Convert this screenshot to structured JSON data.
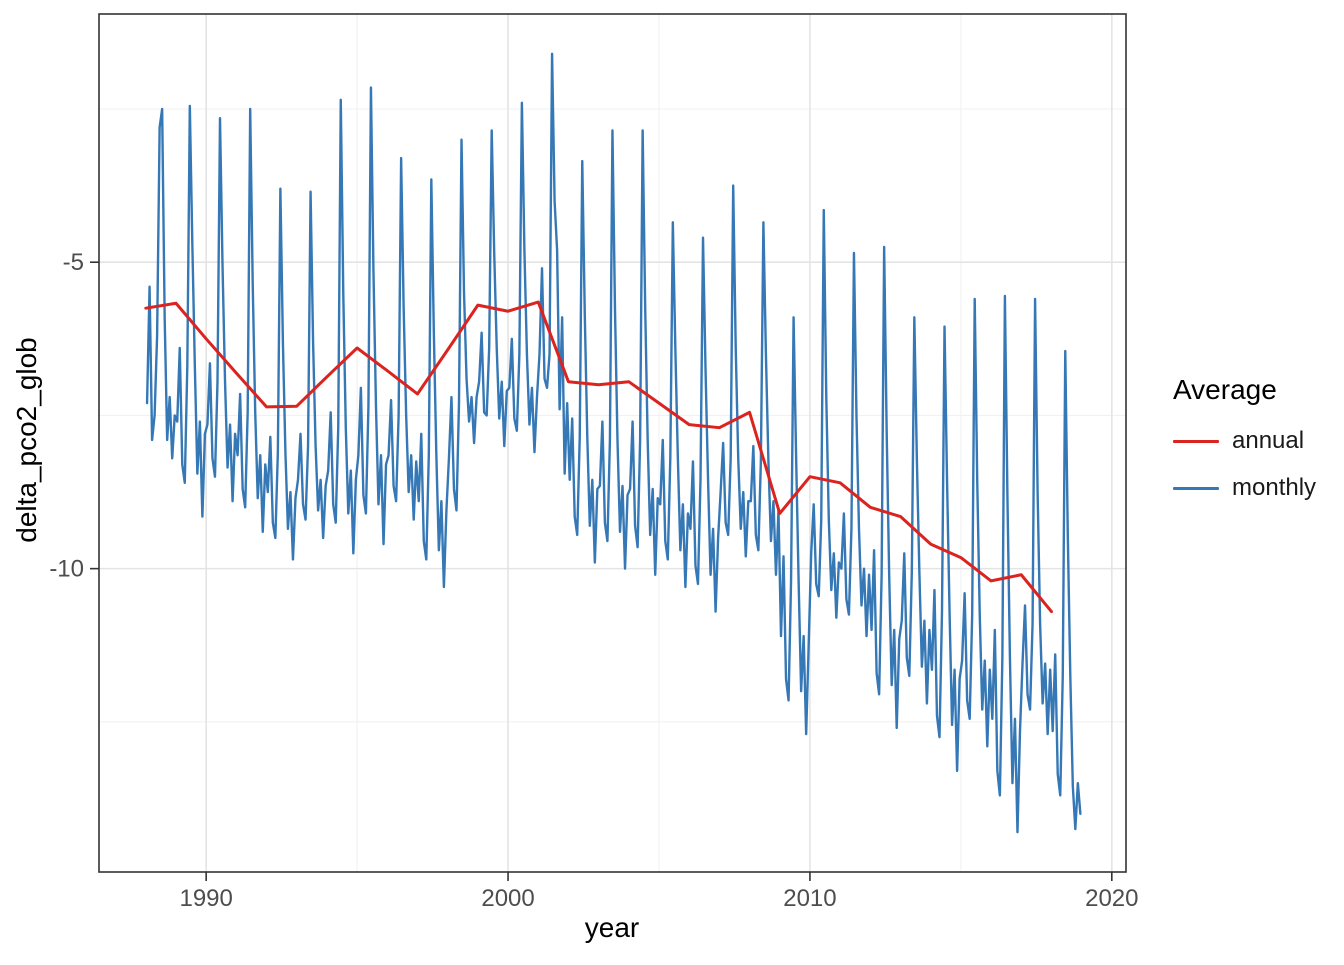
{
  "chart_data": {
    "type": "line",
    "title": "",
    "xlabel": "year",
    "ylabel": "delta_pco2_glob",
    "xlim": [
      1986.45,
      2020.47
    ],
    "ylim": [
      -14.95,
      -0.95
    ],
    "x_ticks": [
      1990,
      2000,
      2010,
      2020
    ],
    "x_minor_ticks": [
      1995,
      2005,
      2015
    ],
    "y_ticks": [
      -5,
      -10
    ],
    "y_minor_ticks": [
      -2.5,
      -7.5,
      -12.5
    ],
    "grid": true,
    "panel_border_color": "#333333",
    "grid_major_color": "#e4e4e4",
    "grid_minor_color": "#f1f1f1",
    "tick_color": "#333333",
    "tick_label_color": "#4d4d4d",
    "legend": {
      "title": "Average",
      "position": "right",
      "entries": [
        {
          "label": "annual",
          "color": "#db231f"
        },
        {
          "label": "monthly",
          "color": "#3578b5"
        }
      ]
    },
    "series": [
      {
        "name": "monthly",
        "color": "#3578b5",
        "stroke_width": 2.4,
        "x_start_year": 1988,
        "points_per_year": 12,
        "values": [
          -7.3,
          -5.4,
          -7.9,
          -7.5,
          -6.2,
          -2.8,
          -2.5,
          -5.9,
          -7.9,
          -7.2,
          -8.2,
          -7.5,
          -7.6,
          -6.4,
          -8.3,
          -8.6,
          -6.7,
          -2.45,
          -4.7,
          -6.7,
          -8.45,
          -7.6,
          -9.15,
          -7.8,
          -7.65,
          -6.65,
          -8.2,
          -8.5,
          -6.95,
          -2.65,
          -5.05,
          -6.95,
          -8.35,
          -7.65,
          -8.9,
          -7.8,
          -8.15,
          -7.15,
          -8.7,
          -9.0,
          -7.45,
          -2.5,
          -5.35,
          -7.45,
          -8.85,
          -8.15,
          -9.4,
          -8.3,
          -8.75,
          -7.85,
          -9.25,
          -9.5,
          -8.1,
          -3.8,
          -6.3,
          -8.1,
          -9.35,
          -8.75,
          -9.85,
          -8.85,
          -8.55,
          -7.8,
          -8.95,
          -9.2,
          -8.0,
          -3.85,
          -6.3,
          -8.0,
          -9.05,
          -8.55,
          -9.5,
          -8.65,
          -8.4,
          -7.45,
          -8.95,
          -9.25,
          -7.7,
          -2.35,
          -5.5,
          -7.7,
          -9.1,
          -8.4,
          -9.75,
          -8.55,
          -8.15,
          -7.05,
          -8.8,
          -9.1,
          -7.35,
          -2.15,
          -5.15,
          -7.35,
          -8.95,
          -8.15,
          -9.6,
          -8.3,
          -8.15,
          -7.25,
          -8.65,
          -8.9,
          -7.5,
          -3.3,
          -5.75,
          -7.5,
          -8.75,
          -8.15,
          -9.2,
          -8.25,
          -8.9,
          -7.8,
          -9.55,
          -9.85,
          -8.15,
          -3.65,
          -6.15,
          -8.15,
          -9.7,
          -8.9,
          -10.3,
          -9.05,
          -8.2,
          -7.2,
          -8.7,
          -9.05,
          -7.3,
          -3.0,
          -5.5,
          -6.9,
          -7.6,
          -7.2,
          -7.95,
          -7.2,
          -6.95,
          -6.15,
          -7.45,
          -7.5,
          -6.4,
          -2.85,
          -4.85,
          -6.4,
          -7.55,
          -6.95,
          -8.0,
          -7.1,
          -7.05,
          -6.25,
          -7.55,
          -7.75,
          -6.5,
          -2.4,
          -4.8,
          -6.5,
          -7.65,
          -7.05,
          -8.1,
          -7.2,
          -6.5,
          -5.1,
          -6.9,
          -7.05,
          -6.5,
          -1.6,
          -4.0,
          -4.8,
          -7.4,
          -5.9,
          -8.45,
          -7.3,
          -8.55,
          -7.55,
          -9.15,
          -9.45,
          -7.85,
          -3.35,
          -5.85,
          -7.85,
          -9.3,
          -8.55,
          -9.9,
          -8.7,
          -8.65,
          -7.6,
          -9.25,
          -9.55,
          -7.9,
          -2.85,
          -5.75,
          -7.9,
          -9.4,
          -8.65,
          -10.0,
          -8.8,
          -8.7,
          -7.6,
          -9.3,
          -9.65,
          -7.9,
          -2.85,
          -5.7,
          -7.9,
          -9.45,
          -8.7,
          -10.1,
          -8.85,
          -8.95,
          -7.9,
          -9.55,
          -9.85,
          -8.2,
          -4.35,
          -6.4,
          -8.2,
          -9.7,
          -8.95,
          -10.3,
          -9.1,
          -9.35,
          -8.25,
          -9.95,
          -10.25,
          -8.55,
          -4.6,
          -6.75,
          -8.55,
          -10.1,
          -9.35,
          -10.7,
          -9.5,
          -8.75,
          -7.95,
          -9.25,
          -9.45,
          -8.2,
          -3.75,
          -6.4,
          -8.2,
          -9.35,
          -8.75,
          -9.8,
          -8.9,
          -8.9,
          -8.0,
          -9.45,
          -9.7,
          -8.25,
          -4.35,
          -6.5,
          -8.25,
          -9.55,
          -8.9,
          -10.1,
          -9.05,
          -11.1,
          -9.8,
          -11.8,
          -12.15,
          -10.2,
          -5.9,
          -8.15,
          -10.2,
          -12.0,
          -11.1,
          -12.7,
          -11.25,
          -9.75,
          -8.95,
          -10.25,
          -10.45,
          -9.2,
          -4.15,
          -7.2,
          -9.2,
          -10.35,
          -9.75,
          -10.8,
          -9.9,
          -10.0,
          -9.1,
          -10.5,
          -10.75,
          -9.35,
          -4.85,
          -7.5,
          -9.35,
          -10.6,
          -10.0,
          -11.1,
          -10.1,
          -11.0,
          -9.7,
          -11.7,
          -12.05,
          -10.1,
          -4.75,
          -7.75,
          -10.1,
          -11.9,
          -11.0,
          -12.6,
          -11.15,
          -10.85,
          -9.75,
          -11.45,
          -11.75,
          -10.05,
          -5.9,
          -8.2,
          -10.05,
          -11.6,
          -10.85,
          -12.2,
          -11.0,
          -11.65,
          -10.35,
          -12.4,
          -12.75,
          -10.7,
          -6.05,
          -8.55,
          -10.7,
          -12.55,
          -11.65,
          -13.3,
          -11.8,
          -11.5,
          -10.4,
          -12.15,
          -12.45,
          -10.75,
          -5.6,
          -8.55,
          -10.75,
          -12.3,
          -11.5,
          -12.9,
          -11.65,
          -12.45,
          -11.0,
          -13.3,
          -13.7,
          -11.45,
          -5.55,
          -8.8,
          -11.45,
          -13.5,
          -12.45,
          -14.3,
          -12.65,
          -11.55,
          -10.6,
          -12.05,
          -12.3,
          -10.9,
          -5.6,
          -8.75,
          -10.9,
          -12.2,
          -11.55,
          -12.7,
          -11.65,
          -12.65,
          -11.4,
          -13.35,
          -13.7,
          -11.75,
          -6.45,
          -9.45,
          -11.75,
          -13.55,
          -14.25,
          -13.5,
          -14.0
        ]
      },
      {
        "name": "annual",
        "color": "#db231f",
        "stroke_width": 3,
        "years": [
          1988,
          1989,
          1990,
          1991,
          1992,
          1993,
          1994,
          1995,
          1996,
          1997,
          1998,
          1999,
          2000,
          2001,
          2002,
          2003,
          2004,
          2005,
          2006,
          2007,
          2008,
          2009,
          2010,
          2011,
          2012,
          2013,
          2014,
          2015,
          2016,
          2017,
          2018
        ],
        "values": [
          -5.75,
          -5.67,
          -6.25,
          -6.81,
          -7.36,
          -7.35,
          -6.87,
          -6.4,
          -6.77,
          -7.15,
          -6.43,
          -5.7,
          -5.8,
          -5.65,
          -6.95,
          -7.0,
          -6.95,
          -7.3,
          -7.65,
          -7.7,
          -7.45,
          -9.1,
          -8.5,
          -8.6,
          -9.0,
          -9.15,
          -9.6,
          -9.82,
          -10.2,
          -10.1,
          -10.7
        ]
      }
    ]
  }
}
